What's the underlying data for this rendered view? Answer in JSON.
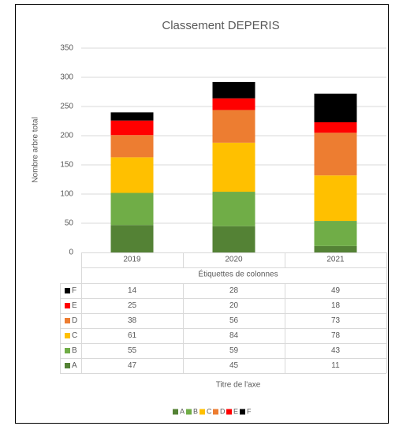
{
  "chart_data": {
    "type": "bar",
    "stacked": true,
    "title": "Classement DEPERIS",
    "y_label": "Nombre arbre total",
    "x_label": "Titre de l'axe",
    "table_header": "Étiquettes de colonnes",
    "categories": [
      "2019",
      "2020",
      "2021"
    ],
    "series": [
      {
        "name": "A",
        "color": "#548235",
        "values": [
          47,
          45,
          11
        ]
      },
      {
        "name": "B",
        "color": "#70ad47",
        "values": [
          55,
          59,
          43
        ]
      },
      {
        "name": "C",
        "color": "#ffc000",
        "values": [
          61,
          84,
          78
        ]
      },
      {
        "name": "D",
        "color": "#ed7d31",
        "values": [
          38,
          56,
          73
        ]
      },
      {
        "name": "E",
        "color": "#ff0000",
        "values": [
          25,
          20,
          18
        ]
      },
      {
        "name": "F",
        "color": "#000000",
        "values": [
          14,
          28,
          49
        ]
      }
    ],
    "ylim": [
      0,
      350
    ],
    "yticks": [
      0,
      50,
      100,
      150,
      200,
      250,
      300,
      350
    ],
    "grid": true,
    "legend": "bottom"
  }
}
